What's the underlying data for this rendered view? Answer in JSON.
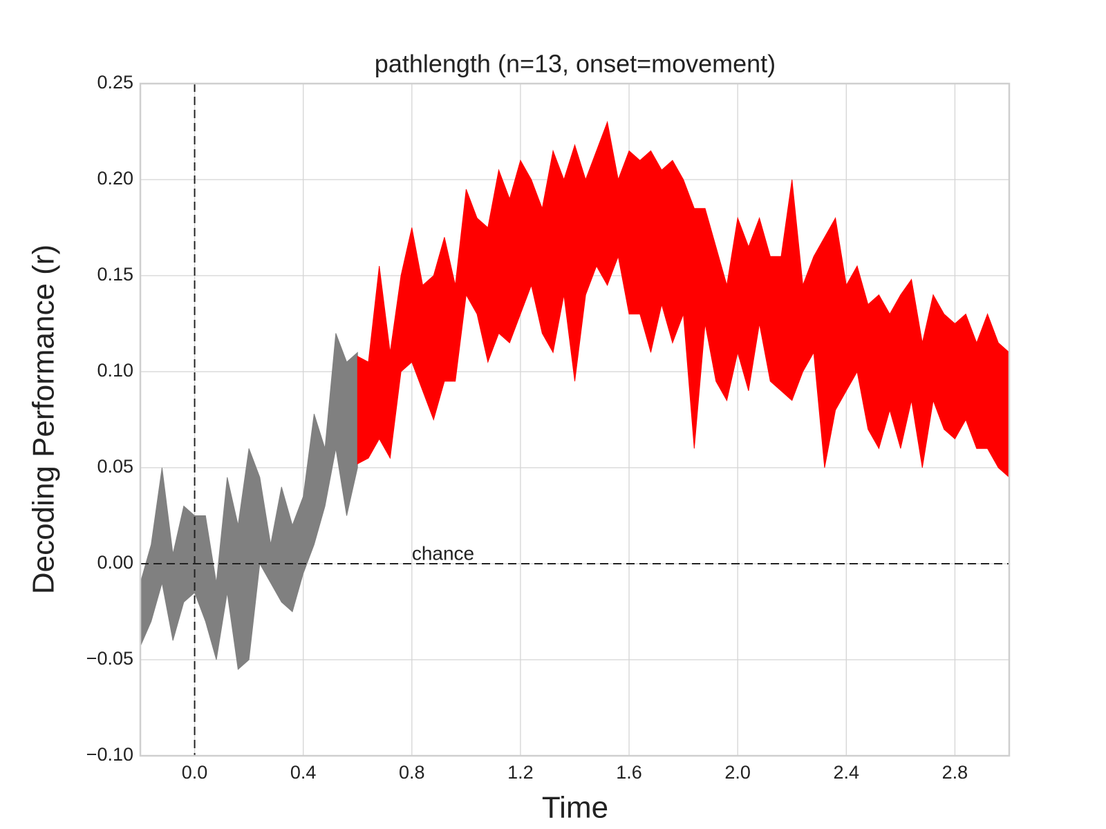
{
  "chart_data": {
    "type": "band",
    "title": "pathlength (n=13, onset=movement)",
    "x_label": "Time",
    "y_label": "Decoding Performance (r)",
    "xlim": [
      -0.2,
      3.0
    ],
    "ylim": [
      -0.1,
      0.25
    ],
    "xticks": [
      {
        "value": 0,
        "label": "0.0"
      },
      0.4,
      0.8,
      1.2,
      1.6,
      {
        "value": 2,
        "label": "2.0"
      },
      2.4,
      2.8
    ],
    "yticks": [
      {
        "value": -0.1,
        "label": "−0.10"
      },
      {
        "value": -0.05,
        "label": "−0.05"
      },
      {
        "value": 0,
        "label": "0.00"
      },
      0.05,
      {
        "value": 0.1,
        "label": "0.10"
      },
      0.15,
      {
        "value": 0.2,
        "label": "0.20"
      },
      0.25
    ],
    "grid": true,
    "vline": 0,
    "hline": 0,
    "annotation": {
      "text": "chance",
      "x": 0.8,
      "y": 0
    },
    "series": [
      {
        "color": "#808080",
        "x": [
          -0.2,
          -0.16,
          -0.12,
          -0.08,
          -0.04,
          0,
          0.04,
          0.08,
          0.12,
          0.16,
          0.2,
          0.24,
          0.28,
          0.32,
          0.36,
          0.4,
          0.44,
          0.48,
          0.52,
          0.56,
          0.6
        ],
        "lower": [
          -0.043,
          -0.03,
          -0.01,
          -0.04,
          -0.02,
          -0.015,
          -0.03,
          -0.05,
          -0.015,
          -0.055,
          -0.05,
          0,
          -0.01,
          -0.02,
          -0.025,
          -0.005,
          0.01,
          0.03,
          0.06,
          0.025,
          0.05
        ],
        "upper": [
          -0.01,
          0.01,
          0.05,
          0.005,
          0.03,
          0.025,
          0.025,
          -0.01,
          0.045,
          0.02,
          0.06,
          0.045,
          0.01,
          0.04,
          0.02,
          0.035,
          0.078,
          0.06,
          0.12,
          0.105,
          0.11
        ]
      },
      {
        "color": "#ff0000",
        "x": [
          0.6,
          0.64,
          0.68,
          0.72,
          0.76,
          0.8,
          0.84,
          0.88,
          0.92,
          0.96,
          1,
          1.04,
          1.08,
          1.12,
          1.16,
          1.2,
          1.24,
          1.28,
          1.32,
          1.36,
          1.4,
          1.44,
          1.48,
          1.52,
          1.56,
          1.6,
          1.64,
          1.68,
          1.72,
          1.76,
          1.8,
          1.84,
          1.88,
          1.92,
          1.96,
          2,
          2.04,
          2.08,
          2.12,
          2.16,
          2.2,
          2.24,
          2.28,
          2.32,
          2.36,
          2.4,
          2.44,
          2.48,
          2.52,
          2.56,
          2.6,
          2.64,
          2.68,
          2.72,
          2.76,
          2.8,
          2.84,
          2.88,
          2.92,
          2.96,
          3
        ],
        "lower": [
          0.052,
          0.055,
          0.065,
          0.055,
          0.1,
          0.105,
          0.09,
          0.075,
          0.095,
          0.095,
          0.14,
          0.13,
          0.105,
          0.12,
          0.115,
          0.13,
          0.145,
          0.12,
          0.11,
          0.14,
          0.095,
          0.14,
          0.155,
          0.145,
          0.16,
          0.13,
          0.13,
          0.11,
          0.135,
          0.115,
          0.13,
          0.06,
          0.125,
          0.095,
          0.085,
          0.11,
          0.09,
          0.125,
          0.095,
          0.09,
          0.085,
          0.1,
          0.11,
          0.05,
          0.08,
          0.09,
          0.1,
          0.07,
          0.06,
          0.08,
          0.06,
          0.085,
          0.05,
          0.085,
          0.07,
          0.065,
          0.075,
          0.06,
          0.06,
          0.05,
          0.045
        ],
        "upper": [
          0.108,
          0.105,
          0.155,
          0.11,
          0.15,
          0.175,
          0.145,
          0.15,
          0.17,
          0.145,
          0.195,
          0.18,
          0.175,
          0.205,
          0.19,
          0.21,
          0.2,
          0.185,
          0.215,
          0.2,
          0.218,
          0.2,
          0.215,
          0.23,
          0.2,
          0.215,
          0.21,
          0.215,
          0.205,
          0.21,
          0.2,
          0.185,
          0.185,
          0.165,
          0.145,
          0.18,
          0.165,
          0.18,
          0.16,
          0.16,
          0.2,
          0.145,
          0.16,
          0.17,
          0.18,
          0.145,
          0.155,
          0.135,
          0.14,
          0.13,
          0.14,
          0.148,
          0.115,
          0.14,
          0.13,
          0.125,
          0.13,
          0.115,
          0.13,
          0.115,
          0.11
        ]
      }
    ]
  }
}
